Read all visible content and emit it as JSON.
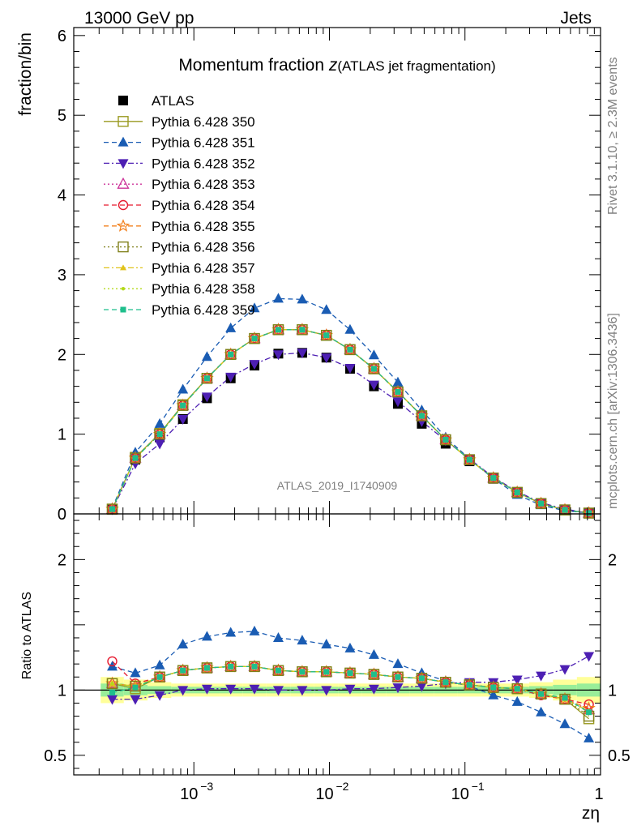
{
  "header": {
    "energy_label": "13000 GeV pp",
    "process_label": "Jets",
    "rivet_label": "Rivet 3.1.10, ≥ 2.3M events",
    "mcplots_label": "mcplots.cern.ch [arXiv:1306.3436]",
    "analysis_label": "ATLAS_2019_I1740909"
  },
  "chart_data": [
    {
      "type": "line",
      "title_main": "Momentum fraction ",
      "title_var": "z",
      "title_sub": "(ATLAS jet fragmentation)",
      "ylabel": "fraction/bin",
      "xlabel": "zη",
      "xscale": "log",
      "xlim": [
        0.00013,
        1.0
      ],
      "ylim": [
        0,
        6.1
      ],
      "y_ticks": [
        "0",
        "1",
        "2",
        "3",
        "4",
        "5",
        "6"
      ],
      "x": [
        0.00025,
        0.00037,
        0.00056,
        0.00083,
        0.00125,
        0.00187,
        0.0028,
        0.0042,
        0.0063,
        0.0095,
        0.0142,
        0.0213,
        0.032,
        0.048,
        0.072,
        0.108,
        0.162,
        0.243,
        0.364,
        0.546,
        0.82
      ],
      "series": [
        {
          "name": "ATLAS",
          "color": "#000000",
          "marker": "square-filled",
          "line": "none",
          "values": [
            0.06,
            0.68,
            0.96,
            1.19,
            1.45,
            1.7,
            1.86,
            2.01,
            2.02,
            1.96,
            1.82,
            1.6,
            1.38,
            1.13,
            0.88,
            0.66,
            0.44,
            0.26,
            0.13,
            0.05,
            0.01
          ]
        },
        {
          "name": "Pythia 6.428 350",
          "color": "#99991f",
          "marker": "square-open",
          "line": "solid",
          "values": [
            0.06,
            0.71,
            1.01,
            1.37,
            1.7,
            2.0,
            2.2,
            2.31,
            2.31,
            2.24,
            2.06,
            1.82,
            1.53,
            1.23,
            0.93,
            0.68,
            0.45,
            0.27,
            0.13,
            0.05,
            0.01
          ]
        },
        {
          "name": "Pythia 6.428 351",
          "color": "#1a5cb3",
          "marker": "triangle-up-filled",
          "line": "dashed",
          "values": [
            0.07,
            0.77,
            1.13,
            1.56,
            1.97,
            2.33,
            2.58,
            2.7,
            2.69,
            2.56,
            2.31,
            1.99,
            1.65,
            1.3,
            0.96,
            0.69,
            0.44,
            0.24,
            0.11,
            0.04,
            0.01
          ]
        },
        {
          "name": "Pythia 6.428 352",
          "color": "#4d1fb3",
          "marker": "triangle-down-filled",
          "line": "dashdot",
          "values": [
            0.055,
            0.63,
            0.88,
            1.19,
            1.47,
            1.72,
            1.88,
            2.0,
            2.02,
            1.96,
            1.83,
            1.62,
            1.41,
            1.16,
            0.92,
            0.69,
            0.46,
            0.28,
            0.14,
            0.06,
            0.01
          ]
        },
        {
          "name": "Pythia 6.428 353",
          "color": "#cc3399",
          "marker": "triangle-up-open",
          "line": "dotted",
          "values": [
            0.06,
            0.7,
            1.0,
            1.36,
            1.7,
            2.0,
            2.2,
            2.31,
            2.31,
            2.24,
            2.06,
            1.82,
            1.53,
            1.23,
            0.93,
            0.68,
            0.45,
            0.27,
            0.13,
            0.05,
            0.01
          ]
        },
        {
          "name": "Pythia 6.428 354",
          "color": "#e6192e",
          "marker": "circle-open",
          "line": "dashed",
          "values": [
            0.06,
            0.7,
            1.0,
            1.36,
            1.7,
            2.0,
            2.2,
            2.31,
            2.31,
            2.24,
            2.06,
            1.82,
            1.53,
            1.23,
            0.93,
            0.68,
            0.45,
            0.27,
            0.13,
            0.05,
            0.01
          ]
        },
        {
          "name": "Pythia 6.428 355",
          "color": "#f27f1a",
          "marker": "star-open",
          "line": "dashed",
          "values": [
            0.06,
            0.7,
            1.0,
            1.36,
            1.7,
            2.0,
            2.2,
            2.31,
            2.31,
            2.24,
            2.06,
            1.82,
            1.53,
            1.23,
            0.93,
            0.68,
            0.45,
            0.27,
            0.13,
            0.05,
            0.01
          ]
        },
        {
          "name": "Pythia 6.428 356",
          "color": "#80801a",
          "marker": "square-open",
          "line": "dotted",
          "values": [
            0.06,
            0.7,
            1.0,
            1.36,
            1.7,
            2.0,
            2.2,
            2.31,
            2.31,
            2.24,
            2.06,
            1.82,
            1.53,
            1.23,
            0.93,
            0.68,
            0.45,
            0.27,
            0.13,
            0.05,
            0.01
          ]
        },
        {
          "name": "Pythia 6.428 357",
          "color": "#e0c21a",
          "marker": "tri-small",
          "line": "dashdot",
          "values": [
            0.06,
            0.7,
            1.0,
            1.36,
            1.7,
            2.0,
            2.2,
            2.31,
            2.31,
            2.24,
            2.06,
            1.82,
            1.53,
            1.23,
            0.93,
            0.68,
            0.45,
            0.27,
            0.13,
            0.05,
            0.01
          ]
        },
        {
          "name": "Pythia 6.428 358",
          "color": "#b3d91a",
          "marker": "dot-small",
          "line": "dotted",
          "values": [
            0.06,
            0.7,
            1.0,
            1.36,
            1.7,
            2.0,
            2.2,
            2.31,
            2.31,
            2.24,
            2.06,
            1.82,
            1.53,
            1.23,
            0.93,
            0.68,
            0.45,
            0.27,
            0.13,
            0.05,
            0.01
          ]
        },
        {
          "name": "Pythia 6.428 359",
          "color": "#1fbf8c",
          "marker": "square-filled-small",
          "line": "dashed",
          "values": [
            0.06,
            0.7,
            1.0,
            1.36,
            1.7,
            2.0,
            2.2,
            2.31,
            2.31,
            2.24,
            2.06,
            1.82,
            1.53,
            1.23,
            0.93,
            0.68,
            0.45,
            0.27,
            0.13,
            0.05,
            0.01
          ]
        }
      ]
    },
    {
      "type": "line",
      "ylabel": "Ratio to ATLAS",
      "xlabel": "zη",
      "xscale": "log",
      "xlim": [
        0.00013,
        1.0
      ],
      "ylim": [
        0.35,
        2.35
      ],
      "y_ticks": [
        "0.5",
        "1",
        "2"
      ],
      "x_ticks": [
        "10",
        "10",
        "10",
        "1"
      ],
      "x_tick_exponents": [
        "−3",
        "−2",
        "−1",
        ""
      ],
      "x": [
        0.00025,
        0.00037,
        0.00056,
        0.00083,
        0.00125,
        0.00187,
        0.0028,
        0.0042,
        0.0063,
        0.0095,
        0.0142,
        0.0213,
        0.032,
        0.048,
        0.072,
        0.108,
        0.162,
        0.243,
        0.364,
        0.546,
        0.82
      ],
      "band_yellow_half": [
        0.1,
        0.08,
        0.06,
        0.05,
        0.05,
        0.05,
        0.05,
        0.05,
        0.05,
        0.05,
        0.05,
        0.05,
        0.05,
        0.05,
        0.05,
        0.05,
        0.05,
        0.05,
        0.06,
        0.08,
        0.1
      ],
      "band_green_half": [
        0.05,
        0.04,
        0.03,
        0.025,
        0.025,
        0.025,
        0.025,
        0.025,
        0.025,
        0.025,
        0.025,
        0.025,
        0.025,
        0.025,
        0.025,
        0.025,
        0.025,
        0.025,
        0.03,
        0.04,
        0.05
      ],
      "series": [
        {
          "name": "Pythia 6.428 350",
          "values": [
            1.05,
            1.01,
            1.1,
            1.15,
            1.17,
            1.18,
            1.18,
            1.15,
            1.14,
            1.14,
            1.13,
            1.12,
            1.1,
            1.09,
            1.06,
            1.04,
            1.02,
            1.01,
            0.97,
            0.93,
            0.78
          ]
        },
        {
          "name": "Pythia 6.428 351",
          "values": [
            1.18,
            1.13,
            1.19,
            1.35,
            1.41,
            1.44,
            1.45,
            1.4,
            1.38,
            1.35,
            1.32,
            1.27,
            1.2,
            1.13,
            1.07,
            1.03,
            0.96,
            0.91,
            0.83,
            0.74,
            0.63
          ]
        },
        {
          "name": "Pythia 6.428 352",
          "values": [
            0.93,
            0.93,
            0.96,
            1.0,
            1.01,
            1.01,
            1.01,
            1.0,
            1.0,
            1.0,
            1.01,
            1.01,
            1.02,
            1.03,
            1.05,
            1.06,
            1.06,
            1.08,
            1.11,
            1.16,
            1.26
          ]
        },
        {
          "name": "Pythia 6.428 353",
          "values": [
            1.05,
            1.03,
            1.1,
            1.15,
            1.17,
            1.18,
            1.18,
            1.15,
            1.14,
            1.14,
            1.13,
            1.12,
            1.1,
            1.09,
            1.06,
            1.04,
            1.02,
            1.01,
            0.97,
            0.93,
            0.85
          ]
        },
        {
          "name": "Pythia 6.428 354",
          "values": [
            1.22,
            1.05,
            1.1,
            1.15,
            1.17,
            1.18,
            1.18,
            1.15,
            1.14,
            1.14,
            1.13,
            1.12,
            1.1,
            1.09,
            1.06,
            1.04,
            1.02,
            1.01,
            0.96,
            0.93,
            0.89
          ]
        },
        {
          "name": "Pythia 6.428 355",
          "values": [
            1.05,
            1.03,
            1.1,
            1.15,
            1.17,
            1.18,
            1.18,
            1.15,
            1.14,
            1.14,
            1.13,
            1.12,
            1.1,
            1.09,
            1.06,
            1.04,
            1.02,
            1.01,
            0.97,
            0.93,
            0.86
          ]
        },
        {
          "name": "Pythia 6.428 356",
          "values": [
            1.05,
            1.03,
            1.1,
            1.15,
            1.17,
            1.18,
            1.18,
            1.15,
            1.14,
            1.14,
            1.13,
            1.12,
            1.1,
            1.09,
            1.06,
            1.04,
            1.02,
            1.01,
            0.97,
            0.93,
            0.8
          ]
        },
        {
          "name": "Pythia 6.428 357",
          "values": [
            1.05,
            1.03,
            1.1,
            1.15,
            1.17,
            1.18,
            1.18,
            1.15,
            1.14,
            1.14,
            1.13,
            1.12,
            1.1,
            1.09,
            1.06,
            1.04,
            1.02,
            1.01,
            0.97,
            0.93,
            0.84
          ]
        },
        {
          "name": "Pythia 6.428 358",
          "values": [
            1.05,
            1.03,
            1.1,
            1.15,
            1.17,
            1.18,
            1.18,
            1.15,
            1.14,
            1.14,
            1.13,
            1.12,
            1.1,
            1.09,
            1.06,
            1.04,
            1.02,
            1.01,
            0.97,
            0.93,
            0.83
          ]
        },
        {
          "name": "Pythia 6.428 359",
          "values": [
            0.98,
            1.02,
            1.1,
            1.15,
            1.17,
            1.18,
            1.18,
            1.15,
            1.14,
            1.14,
            1.13,
            1.12,
            1.1,
            1.09,
            1.06,
            1.04,
            1.02,
            1.01,
            0.97,
            0.94,
            0.83
          ]
        }
      ]
    }
  ]
}
